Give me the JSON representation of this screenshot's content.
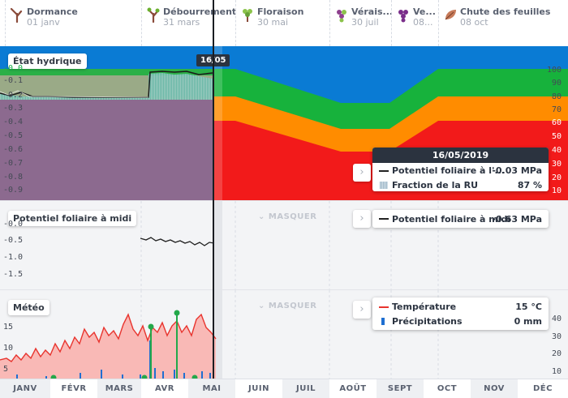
{
  "phenology": [
    {
      "name": "Dormance",
      "date": "01 janv",
      "icon": "bare-vine-icon"
    },
    {
      "name": "Débourrement",
      "date": "31 mars",
      "icon": "budding-vine-icon"
    },
    {
      "name": "Floraison",
      "date": "30 mai",
      "icon": "flowering-vine-icon"
    },
    {
      "name": "Vérais...",
      "date": "30 juil",
      "icon": "veraison-grape-icon"
    },
    {
      "name": "Ve...",
      "date": "08...",
      "icon": "harvest-grape-icon"
    },
    {
      "name": "Chute des feuilles",
      "date": "08 oct",
      "icon": "leaf-fall-icon"
    }
  ],
  "cursor": {
    "date_badge": "16/05"
  },
  "hydric": {
    "title": "État hydrique",
    "left_ticks": [
      "-0.0",
      "-0.1",
      "-0.2",
      "-0.3",
      "-0.4",
      "-0.5",
      "-0.6",
      "-0.7",
      "-0.8",
      "-0.9"
    ],
    "right_ticks": [
      "100",
      "90",
      "80",
      "70",
      "60",
      "50",
      "40",
      "30",
      "20",
      "10"
    ],
    "colors": {
      "blue": "#0a7bd4",
      "green": "#17b23c",
      "orange": "#ff8c00",
      "red": "#f21a1a",
      "purple": "#8c6a8f"
    },
    "legend": {
      "date": "16/05/2019",
      "rows": [
        {
          "label": "Potentiel foliaire à l'...",
          "value": "-0.03 MPa",
          "icon": "line-swatch"
        },
        {
          "label": "Fraction de la RU",
          "value": "87 %",
          "icon": "hatched-swatch"
        }
      ]
    }
  },
  "leaf": {
    "title": "Potentiel foliaire à midi",
    "masquer": "MASQUER",
    "ticks": [
      "-0.0",
      "-0.5",
      "-1.0",
      "-1.5"
    ],
    "legend": {
      "label": "Potentiel foliaire à midi",
      "value": "-0.63 MPa"
    }
  },
  "meteo": {
    "title": "Météo",
    "masquer": "MASQUER",
    "left_ticks": [
      "15",
      "10",
      "5"
    ],
    "right_ticks": [
      "40",
      "30",
      "20",
      "10"
    ],
    "legend": {
      "rows": [
        {
          "label": "Température",
          "value": "15 °C",
          "color": "#e8342e"
        },
        {
          "label": "Précipitations",
          "value": "0 mm",
          "color": "#1f6fd1"
        }
      ]
    }
  },
  "months": [
    "JANV",
    "FÉVR",
    "MARS",
    "AVR",
    "MAI",
    "JUIN",
    "JUIL",
    "AOÛT",
    "SEPT",
    "OCT",
    "NOV",
    "DÉC"
  ]
}
